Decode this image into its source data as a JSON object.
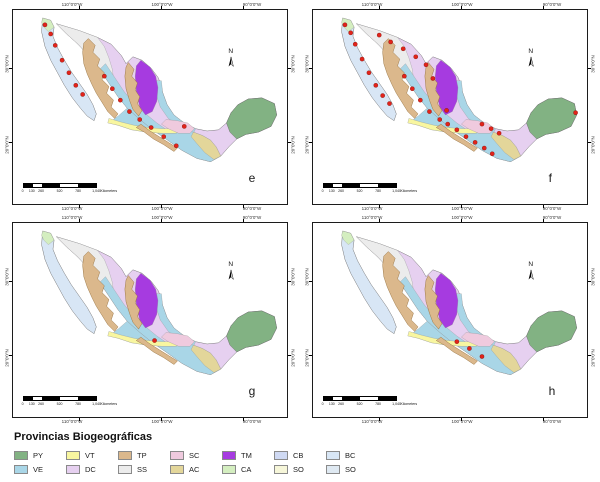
{
  "axis": {
    "lon_labels": [
      "110°0'0\"W",
      "100°0'0\"W",
      "90°0'0\"W"
    ],
    "lat_labels": [
      "30°0'0\"N",
      "20°0'0\"N"
    ]
  },
  "map": {
    "north_label": "N",
    "scalebar": {
      "numbers": [
        "0",
        "130",
        "260",
        "520",
        "780",
        "1,040"
      ],
      "unit": "Kilometers"
    }
  },
  "panels": [
    {
      "letter": "e",
      "dots": [
        [
          28,
          13
        ],
        [
          33,
          21
        ],
        [
          37,
          31
        ],
        [
          43,
          44
        ],
        [
          49,
          55
        ],
        [
          55,
          66
        ],
        [
          61,
          74
        ],
        [
          80,
          58
        ],
        [
          87,
          69
        ],
        [
          94,
          79
        ],
        [
          102,
          89
        ],
        [
          111,
          96
        ],
        [
          121,
          103
        ],
        [
          132,
          111
        ],
        [
          143,
          119
        ],
        [
          150,
          102
        ]
      ]
    },
    {
      "letter": "f",
      "dots": [
        [
          28,
          13
        ],
        [
          33,
          20
        ],
        [
          37,
          30
        ],
        [
          43,
          43
        ],
        [
          49,
          55
        ],
        [
          55,
          66
        ],
        [
          61,
          75
        ],
        [
          67,
          82
        ],
        [
          58,
          22
        ],
        [
          68,
          28
        ],
        [
          79,
          34
        ],
        [
          90,
          41
        ],
        [
          99,
          48
        ],
        [
          80,
          58
        ],
        [
          87,
          69
        ],
        [
          94,
          79
        ],
        [
          102,
          89
        ],
        [
          111,
          96
        ],
        [
          118,
          100
        ],
        [
          126,
          105
        ],
        [
          134,
          111
        ],
        [
          142,
          116
        ],
        [
          150,
          121
        ],
        [
          157,
          126
        ],
        [
          148,
          100
        ],
        [
          156,
          104
        ],
        [
          163,
          108
        ],
        [
          230,
          90
        ],
        [
          117,
          88
        ],
        [
          105,
          60
        ]
      ]
    },
    {
      "letter": "g",
      "dots": [
        [
          124,
          103
        ]
      ]
    },
    {
      "letter": "h",
      "dots": [
        [
          126,
          104
        ],
        [
          137,
          110
        ],
        [
          148,
          117
        ]
      ]
    }
  ],
  "legend": {
    "title": "Provincias Biogeográficas",
    "items": [
      {
        "key": "py",
        "label": "PY",
        "color": "#82b283"
      },
      {
        "key": "ve",
        "label": "VE",
        "color": "#a9d6e7"
      },
      {
        "key": "vt",
        "label": "VT",
        "color": "#f8f6a0"
      },
      {
        "key": "dc",
        "label": "DC",
        "color": "#e6d0f0"
      },
      {
        "key": "tp",
        "label": "TP",
        "color": "#dbb88c"
      },
      {
        "key": "ss",
        "label": "SS",
        "color": "#ececec"
      },
      {
        "key": "sc",
        "label": "SC",
        "color": "#efcade"
      },
      {
        "key": "ac",
        "label": "AC",
        "color": "#e3d69a"
      },
      {
        "key": "tm",
        "label": "TM",
        "color": "#a63be0"
      },
      {
        "key": "ca",
        "label": "CA",
        "color": "#d4eec0"
      },
      {
        "key": "cb",
        "label": "CB",
        "color": "#cfd9f3"
      },
      {
        "key": "so1",
        "label": "SO",
        "color": "#f6f6d9"
      },
      {
        "key": "bc",
        "label": "BC",
        "color": "#d8e6f5"
      },
      {
        "key": "so2",
        "label": "SO",
        "color": "#dfe9f2"
      }
    ]
  },
  "dot_color": "#e2231a"
}
